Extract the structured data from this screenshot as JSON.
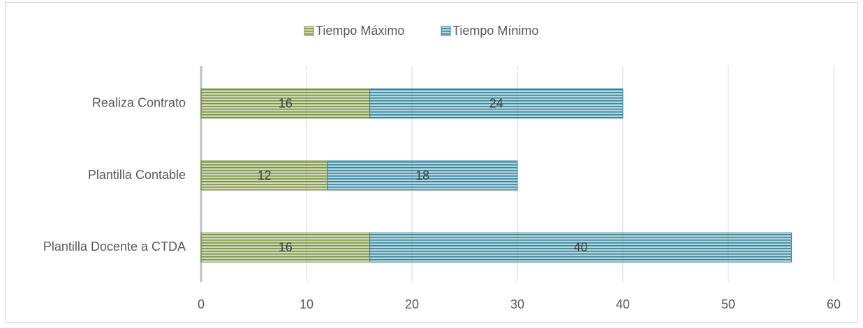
{
  "chart_data": {
    "type": "stacked-barh",
    "categories": [
      "Realiza Contrato",
      "Plantilla Contable",
      "Plantilla Docente a CTDA"
    ],
    "series": [
      {
        "name": "Tiempo Máximo",
        "color": "#77933c",
        "values": [
          16,
          12,
          16
        ]
      },
      {
        "name": "Tiempo Mínimo",
        "color": "#31859c",
        "values": [
          24,
          18,
          40
        ]
      }
    ],
    "xlim": [
      0,
      60
    ],
    "xticks": [
      0,
      10,
      20,
      30,
      40,
      50,
      60
    ],
    "grid": true,
    "legend": "top"
  }
}
